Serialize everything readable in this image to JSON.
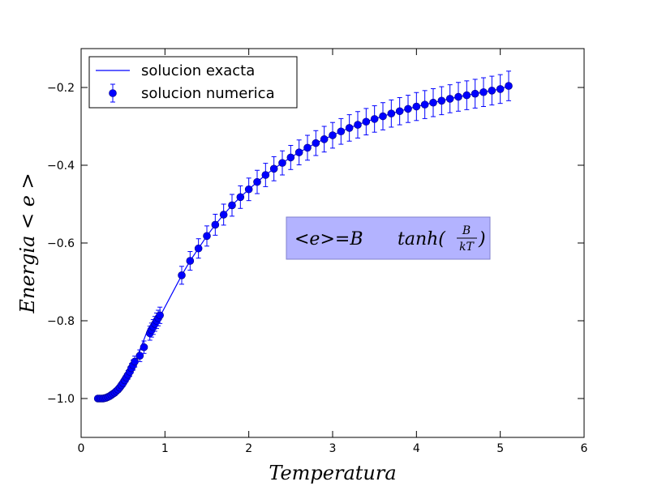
{
  "chart_data": {
    "type": "scatter",
    "xlabel": "Temperatura",
    "ylabel": "Energia  < e >",
    "xlim": [
      0,
      6
    ],
    "ylim": [
      -1.1,
      -0.1
    ],
    "xticks": [
      0,
      1,
      2,
      3,
      4,
      5,
      6
    ],
    "yticks": [
      -1.0,
      -0.8,
      -0.6,
      -0.4,
      -0.2
    ],
    "grid": false,
    "legend_placement": "top-left",
    "annotation": {
      "text": "<e>=B tanh(B/kT)",
      "prefix": "<e>=B",
      "func": "tanh(",
      "numerator": "B",
      "denominator": "kT",
      "suffix": ")",
      "position_data": [
        2.45,
        -0.64
      ],
      "box_color": "#b3b3ff"
    },
    "series": [
      {
        "name": "solucion exacta",
        "kind": "line",
        "color": "#0000ff",
        "x": [
          0.2,
          0.25,
          0.3,
          0.35,
          0.4,
          0.45,
          0.5,
          0.55,
          0.6,
          0.65,
          0.7,
          0.75,
          0.8,
          0.85,
          0.9,
          0.95,
          1.2,
          1.3,
          1.4,
          1.5,
          1.6,
          1.7,
          1.8,
          1.9,
          2.0,
          2.1,
          2.2,
          2.3,
          2.4,
          2.5,
          2.6,
          2.7,
          2.8,
          2.9,
          3.0,
          3.1,
          3.2,
          3.3,
          3.4,
          3.5,
          3.6,
          3.7,
          3.8,
          3.9,
          4.0,
          4.1,
          4.2,
          4.3,
          4.4,
          4.5,
          4.6,
          4.7,
          4.8,
          4.9,
          5.0,
          5.1
        ],
        "y": [
          -1.0,
          -1.0,
          -0.998,
          -0.993,
          -0.987,
          -0.976,
          -0.962,
          -0.945,
          -0.925,
          -0.902,
          -0.875,
          -0.848,
          -0.82,
          -0.808,
          -0.798,
          -0.785,
          -0.683,
          -0.646,
          -0.614,
          -0.582,
          -0.553,
          -0.527,
          -0.503,
          -0.482,
          -0.462,
          -0.443,
          -0.425,
          -0.409,
          -0.394,
          -0.38,
          -0.367,
          -0.355,
          -0.343,
          -0.333,
          -0.323,
          -0.313,
          -0.304,
          -0.296,
          -0.288,
          -0.281,
          -0.274,
          -0.267,
          -0.261,
          -0.255,
          -0.249,
          -0.244,
          -0.239,
          -0.234,
          -0.229,
          -0.224,
          -0.22,
          -0.216,
          -0.212,
          -0.208,
          -0.204,
          -0.196
        ]
      },
      {
        "name": "solucion numerica",
        "kind": "errorbar",
        "color": "#0000ff",
        "x": [
          0.2,
          0.22,
          0.24,
          0.26,
          0.28,
          0.3,
          0.32,
          0.34,
          0.36,
          0.38,
          0.4,
          0.42,
          0.44,
          0.46,
          0.48,
          0.5,
          0.52,
          0.54,
          0.56,
          0.58,
          0.6,
          0.62,
          0.64,
          0.7,
          0.75,
          0.82,
          0.84,
          0.86,
          0.88,
          0.9,
          0.92,
          0.94,
          1.2,
          1.3,
          1.4,
          1.5,
          1.6,
          1.7,
          1.8,
          1.9,
          2.0,
          2.1,
          2.2,
          2.3,
          2.4,
          2.5,
          2.6,
          2.7,
          2.8,
          2.9,
          3.0,
          3.1,
          3.2,
          3.3,
          3.4,
          3.5,
          3.6,
          3.7,
          3.8,
          3.9,
          4.0,
          4.1,
          4.2,
          4.3,
          4.4,
          4.5,
          4.6,
          4.7,
          4.8,
          4.9,
          5.0,
          5.1
        ],
        "y": [
          -1.0,
          -1.0,
          -1.0,
          -1.0,
          -0.999,
          -0.998,
          -0.996,
          -0.994,
          -0.991,
          -0.988,
          -0.985,
          -0.981,
          -0.977,
          -0.972,
          -0.966,
          -0.96,
          -0.953,
          -0.946,
          -0.939,
          -0.931,
          -0.922,
          -0.914,
          -0.905,
          -0.89,
          -0.868,
          -0.832,
          -0.824,
          -0.816,
          -0.808,
          -0.8,
          -0.793,
          -0.786,
          -0.683,
          -0.646,
          -0.614,
          -0.582,
          -0.553,
          -0.527,
          -0.503,
          -0.482,
          -0.462,
          -0.443,
          -0.425,
          -0.409,
          -0.394,
          -0.38,
          -0.367,
          -0.355,
          -0.343,
          -0.333,
          -0.323,
          -0.313,
          -0.304,
          -0.296,
          -0.288,
          -0.281,
          -0.274,
          -0.267,
          -0.261,
          -0.255,
          -0.249,
          -0.244,
          -0.239,
          -0.234,
          -0.229,
          -0.224,
          -0.22,
          -0.216,
          -0.212,
          -0.208,
          -0.204,
          -0.196
        ],
        "yerr": [
          0.003,
          0.003,
          0.003,
          0.003,
          0.003,
          0.004,
          0.004,
          0.004,
          0.005,
          0.005,
          0.006,
          0.006,
          0.007,
          0.007,
          0.008,
          0.009,
          0.009,
          0.01,
          0.011,
          0.012,
          0.012,
          0.013,
          0.014,
          0.015,
          0.016,
          0.018,
          0.018,
          0.019,
          0.019,
          0.02,
          0.02,
          0.021,
          0.023,
          0.024,
          0.025,
          0.026,
          0.027,
          0.027,
          0.028,
          0.029,
          0.029,
          0.03,
          0.03,
          0.031,
          0.031,
          0.031,
          0.032,
          0.032,
          0.032,
          0.033,
          0.033,
          0.033,
          0.034,
          0.034,
          0.034,
          0.034,
          0.035,
          0.035,
          0.035,
          0.035,
          0.036,
          0.036,
          0.036,
          0.036,
          0.036,
          0.037,
          0.037,
          0.037,
          0.037,
          0.037,
          0.037,
          0.038
        ]
      }
    ]
  }
}
